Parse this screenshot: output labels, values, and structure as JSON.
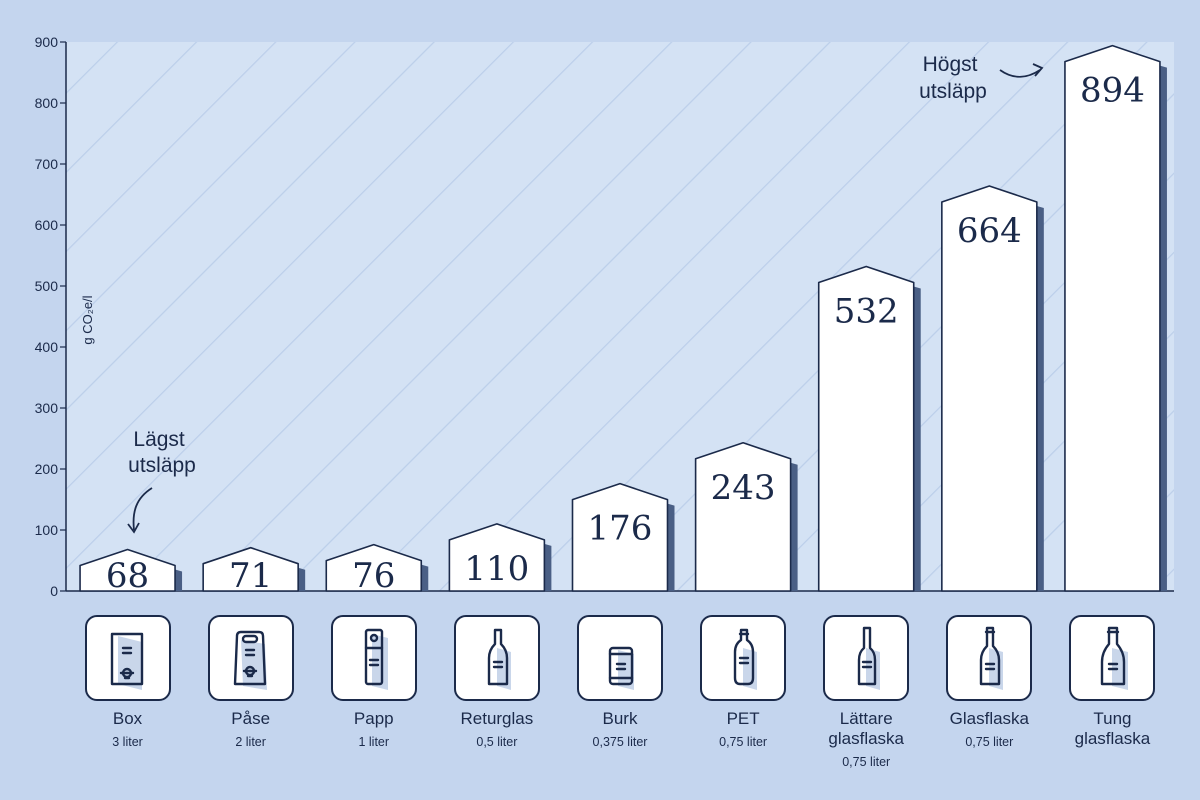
{
  "chart_data": {
    "type": "bar",
    "ylabel": "g CO₂e/l",
    "ylim": [
      0,
      900
    ],
    "yticks": [
      "0",
      "100",
      "200",
      "300",
      "400",
      "500",
      "600",
      "700",
      "800",
      "900"
    ],
    "grid": "diagonal hatch background",
    "categories": [
      "Box",
      "Påse",
      "Papp",
      "Returglas",
      "Burk",
      "PET",
      "Lättare glasflaska",
      "Glasflaska",
      "Tung glasflaska"
    ],
    "values": [
      68,
      71,
      76,
      110,
      176,
      243,
      532,
      664,
      894
    ],
    "value_labels": [
      "68",
      "71",
      "76",
      "110",
      "176",
      "243",
      "532",
      "664",
      "894"
    ],
    "annotations": {
      "lowest": "Lägst utsläpp",
      "highest": "Högst utsläpp"
    }
  },
  "packages": [
    {
      "name": "Box",
      "size": "3 liter",
      "icon": "bag-in-box-icon"
    },
    {
      "name": "Påse",
      "size": "2 liter",
      "icon": "wine-pouch-icon"
    },
    {
      "name": "Papp",
      "size": "1 liter",
      "icon": "carton-icon"
    },
    {
      "name": "Returglas",
      "size": "0,5 liter",
      "icon": "returnable-bottle-icon"
    },
    {
      "name": "Burk",
      "size": "0,375 liter",
      "icon": "can-icon"
    },
    {
      "name": "PET",
      "size": "0,75 liter",
      "icon": "pet-bottle-icon"
    },
    {
      "name": "Lättare\nglasflaska",
      "size": "0,75 liter",
      "icon": "light-glass-bottle-icon"
    },
    {
      "name": "Glasflaska",
      "size": "0,75 liter",
      "icon": "glass-bottle-icon"
    },
    {
      "name": "Tung\nglasflaska",
      "size": "",
      "icon": "heavy-glass-bottle-icon"
    }
  ],
  "colors": {
    "background": "#c4d5ee",
    "plot_background": "#d4e2f4",
    "bar": "#ffffff",
    "bar_shadow": "#4a5f85",
    "ink": "#1b2a4a"
  }
}
